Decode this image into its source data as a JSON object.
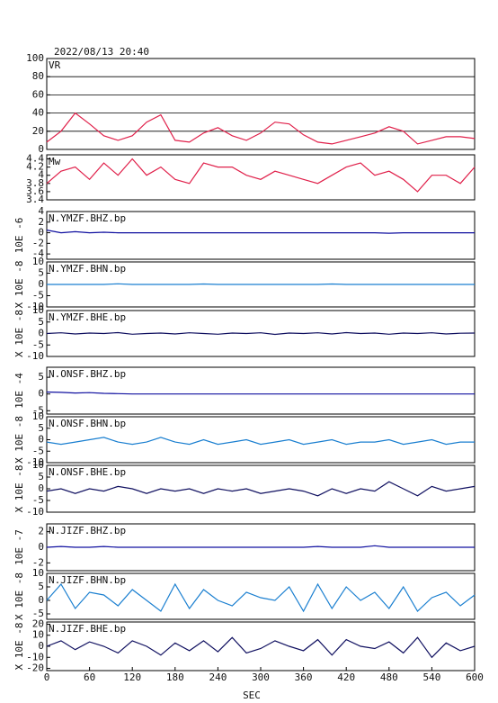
{
  "chart_data": [
    {
      "type": "line",
      "title": "2022/08/13 20:40",
      "label": "VR",
      "color": "#e0204a",
      "grid": true,
      "x": [
        0,
        20,
        40,
        60,
        80,
        100,
        120,
        140,
        160,
        180,
        200,
        220,
        240,
        260,
        280,
        300,
        320,
        340,
        360,
        380,
        400,
        420,
        440,
        460,
        480,
        500,
        520,
        540,
        560,
        580,
        600
      ],
      "values": [
        8,
        20,
        40,
        28,
        15,
        10,
        15,
        30,
        38,
        10,
        8,
        18,
        24,
        15,
        10,
        18,
        30,
        28,
        16,
        8,
        6,
        10,
        14,
        18,
        25,
        20,
        6,
        10,
        14,
        14,
        12
      ],
      "xlim": [
        0,
        600
      ],
      "ylim": [
        0,
        100
      ],
      "yticks": [
        0,
        20,
        40,
        60,
        80,
        100
      ]
    },
    {
      "type": "line",
      "label": "Mw",
      "color": "#e0204a",
      "x": [
        0,
        20,
        40,
        60,
        80,
        100,
        120,
        140,
        160,
        180,
        200,
        220,
        240,
        260,
        280,
        300,
        320,
        340,
        360,
        380,
        400,
        420,
        440,
        460,
        480,
        500,
        520,
        540,
        560,
        580,
        600
      ],
      "values": [
        3.8,
        4.1,
        4.2,
        3.9,
        4.3,
        4.0,
        4.4,
        4.0,
        4.2,
        3.9,
        3.8,
        4.3,
        4.2,
        4.2,
        4.0,
        3.9,
        4.1,
        4.0,
        3.9,
        3.8,
        4.0,
        4.2,
        4.3,
        4.0,
        4.1,
        3.9,
        3.6,
        4.0,
        4.0,
        3.8,
        4.2
      ],
      "xlim": [
        0,
        600
      ],
      "ylim": [
        3.4,
        4.5
      ],
      "yticks": [
        3.4,
        3.6,
        3.8,
        4,
        4.2,
        4.4
      ]
    },
    {
      "type": "line",
      "label": "N.YMZF.BHZ.bp",
      "ylabel": "10E -6",
      "color": "#1010a0",
      "x": [
        0,
        20,
        40,
        60,
        80,
        100,
        120,
        140,
        160,
        180,
        200,
        220,
        240,
        260,
        280,
        300,
        320,
        340,
        360,
        380,
        400,
        420,
        440,
        460,
        480,
        500,
        520,
        540,
        560,
        580,
        600
      ],
      "values": [
        0.5,
        0,
        0.2,
        0,
        0.1,
        0,
        0,
        0,
        0,
        0,
        0,
        0,
        0,
        0,
        0,
        0,
        0,
        0,
        0,
        0,
        0,
        0,
        0,
        0,
        -0.1,
        0,
        0,
        0,
        0,
        0,
        0
      ],
      "xlim": [
        0,
        600
      ],
      "ylim": [
        -5,
        4
      ],
      "yticks": [
        -4,
        -2,
        0,
        2,
        4
      ]
    },
    {
      "type": "line",
      "label": "N.YMZF.BHN.bp",
      "ylabel": "X 10E -8",
      "color": "#1a7fd0",
      "x": [
        0,
        20,
        40,
        60,
        80,
        100,
        120,
        140,
        160,
        180,
        200,
        220,
        240,
        260,
        280,
        300,
        320,
        340,
        360,
        380,
        400,
        420,
        440,
        460,
        480,
        500,
        520,
        540,
        560,
        580,
        600
      ],
      "values": [
        0,
        0,
        0,
        0,
        0,
        0.3,
        0,
        0,
        0,
        0,
        0,
        0.2,
        0,
        0,
        0,
        0,
        0,
        0,
        0,
        0,
        0.2,
        0,
        0,
        0,
        0,
        0,
        0,
        0,
        0,
        0,
        0
      ],
      "xlim": [
        0,
        600
      ],
      "ylim": [
        -10,
        10
      ],
      "yticks": [
        -10,
        -5,
        0,
        5,
        10
      ]
    },
    {
      "type": "line",
      "label": "N.YMZF.BHE.bp",
      "ylabel": "X 10E -8",
      "color": "#101060",
      "x": [
        0,
        20,
        40,
        60,
        80,
        100,
        120,
        140,
        160,
        180,
        200,
        220,
        240,
        260,
        280,
        300,
        320,
        340,
        360,
        380,
        400,
        420,
        440,
        460,
        480,
        500,
        520,
        540,
        560,
        580,
        600
      ],
      "values": [
        0,
        0.3,
        -0.2,
        0.2,
        0,
        0.4,
        -0.3,
        0,
        0.2,
        -0.2,
        0.3,
        0,
        -0.3,
        0.2,
        0,
        0.3,
        -0.4,
        0.2,
        0,
        0.3,
        -0.2,
        0.4,
        0,
        0.2,
        -0.3,
        0.2,
        0,
        0.3,
        -0.2,
        0.1,
        0.2
      ],
      "xlim": [
        0,
        600
      ],
      "ylim": [
        -10,
        10
      ],
      "yticks": [
        -10,
        -5,
        0,
        5,
        10
      ]
    },
    {
      "type": "line",
      "label": "N.ONSF.BHZ.bp",
      "ylabel": "10E -4",
      "color": "#1010a0",
      "x": [
        0,
        20,
        40,
        60,
        80,
        100,
        120,
        140,
        160,
        180,
        200,
        220,
        240,
        260,
        280,
        300,
        320,
        340,
        360,
        380,
        400,
        420,
        440,
        460,
        480,
        500,
        520,
        540,
        560,
        580,
        600
      ],
      "values": [
        0.6,
        0.5,
        0.3,
        0.4,
        0.2,
        0.1,
        0,
        0,
        0,
        0,
        0,
        0,
        0,
        0,
        0,
        0,
        0,
        0,
        0,
        0,
        0,
        0,
        0,
        0,
        0,
        0,
        0,
        0,
        0,
        0,
        0
      ],
      "xlim": [
        0,
        600
      ],
      "ylim": [
        -6,
        8
      ],
      "yticks": [
        -5,
        0,
        5
      ]
    },
    {
      "type": "line",
      "label": "N.ONSF.BHN.bp",
      "ylabel": "X 10E -8",
      "color": "#1a7fd0",
      "x": [
        0,
        20,
        40,
        60,
        80,
        100,
        120,
        140,
        160,
        180,
        200,
        220,
        240,
        260,
        280,
        300,
        320,
        340,
        360,
        380,
        400,
        420,
        440,
        460,
        480,
        500,
        520,
        540,
        560,
        580,
        600
      ],
      "values": [
        -1,
        -2,
        -1,
        0,
        1,
        -1,
        -2,
        -1,
        1,
        -1,
        -2,
        0,
        -2,
        -1,
        0,
        -2,
        -1,
        0,
        -2,
        -1,
        0,
        -2,
        -1,
        -1,
        0,
        -2,
        -1,
        0,
        -2,
        -1,
        -1
      ],
      "xlim": [
        0,
        600
      ],
      "ylim": [
        -10,
        10
      ],
      "yticks": [
        -10,
        -5,
        0,
        5,
        10
      ]
    },
    {
      "type": "line",
      "label": "N.ONSF.BHE.bp",
      "ylabel": "X 10E -8",
      "color": "#101060",
      "x": [
        0,
        20,
        40,
        60,
        80,
        100,
        120,
        140,
        160,
        180,
        200,
        220,
        240,
        260,
        280,
        300,
        320,
        340,
        360,
        380,
        400,
        420,
        440,
        460,
        480,
        500,
        520,
        540,
        560,
        580,
        600
      ],
      "values": [
        -1,
        0,
        -2,
        0,
        -1,
        1,
        0,
        -2,
        0,
        -1,
        0,
        -2,
        0,
        -1,
        0,
        -2,
        -1,
        0,
        -1,
        -3,
        0,
        -2,
        0,
        -1,
        3,
        0,
        -3,
        1,
        -1,
        0,
        1
      ],
      "xlim": [
        0,
        600
      ],
      "ylim": [
        -10,
        10
      ],
      "yticks": [
        -10,
        -5,
        0,
        5,
        10
      ]
    },
    {
      "type": "line",
      "label": "N.JIZF.BHZ.bp",
      "ylabel": "10E -7",
      "color": "#1010a0",
      "x": [
        0,
        20,
        40,
        60,
        80,
        100,
        120,
        140,
        160,
        180,
        200,
        220,
        240,
        260,
        280,
        300,
        320,
        340,
        360,
        380,
        400,
        420,
        440,
        460,
        480,
        500,
        520,
        540,
        560,
        580,
        600
      ],
      "values": [
        0,
        0.1,
        0,
        0,
        0.1,
        0,
        0,
        0,
        0,
        0,
        0,
        0,
        0,
        0,
        0,
        0,
        0,
        0,
        0,
        0.1,
        0,
        0,
        0,
        0.2,
        0,
        0,
        0,
        0,
        0,
        0,
        0
      ],
      "xlim": [
        0,
        600
      ],
      "ylim": [
        -3,
        3
      ],
      "yticks": [
        -2,
        0,
        2
      ]
    },
    {
      "type": "line",
      "label": "N.JIZF.BHN.bp",
      "ylabel": "X 10E -8",
      "color": "#1a7fd0",
      "x": [
        0,
        20,
        40,
        60,
        80,
        100,
        120,
        140,
        160,
        180,
        200,
        220,
        240,
        260,
        280,
        300,
        320,
        340,
        360,
        380,
        400,
        420,
        440,
        460,
        480,
        500,
        520,
        540,
        560,
        580,
        600
      ],
      "values": [
        0,
        6,
        -3,
        3,
        2,
        -2,
        4,
        0,
        -4,
        6,
        -3,
        4,
        0,
        -2,
        3,
        1,
        0,
        5,
        -4,
        6,
        -3,
        5,
        0,
        3,
        -3,
        5,
        -4,
        1,
        3,
        -2,
        2
      ],
      "xlim": [
        0,
        600
      ],
      "ylim": [
        -7,
        10
      ],
      "yticks": [
        -5,
        0,
        5,
        10
      ]
    },
    {
      "type": "line",
      "label": "N.JIZF.BHE.bp",
      "ylabel": "X 10E -8",
      "color": "#101060",
      "xlabel": "SEC",
      "x": [
        0,
        20,
        40,
        60,
        80,
        100,
        120,
        140,
        160,
        180,
        200,
        220,
        240,
        260,
        280,
        300,
        320,
        340,
        360,
        380,
        400,
        420,
        440,
        460,
        480,
        500,
        520,
        540,
        560,
        580,
        600
      ],
      "values": [
        0,
        5,
        -3,
        4,
        0,
        -6,
        5,
        0,
        -8,
        3,
        -4,
        5,
        -5,
        8,
        -6,
        -2,
        5,
        0,
        -4,
        6,
        -8,
        6,
        0,
        -2,
        4,
        -6,
        8,
        -10,
        3,
        -4,
        0
      ],
      "xlim": [
        0,
        600
      ],
      "ylim": [
        -22,
        22
      ],
      "yticks": [
        -20,
        -10,
        0,
        10,
        20
      ],
      "xticks": [
        0,
        60,
        120,
        180,
        240,
        300,
        360,
        420,
        480,
        540,
        600
      ]
    }
  ]
}
